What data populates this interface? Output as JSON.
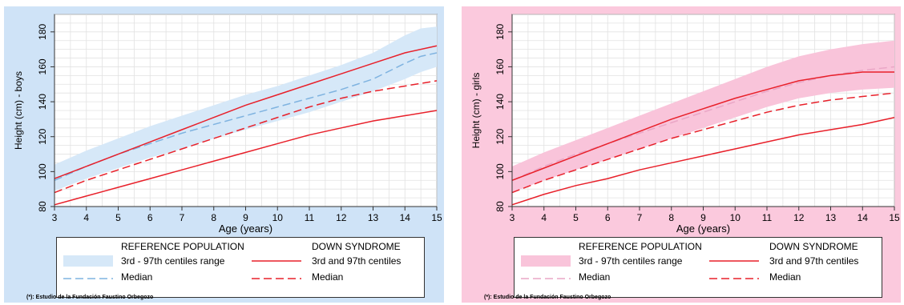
{
  "chart_data": [
    {
      "type": "line",
      "xlabel": "Age (years)",
      "ylabel": "Height (cm) - boys",
      "xlim": [
        3,
        15
      ],
      "ylim": [
        80,
        190
      ],
      "xticks": [
        "3",
        "4",
        "5",
        "6",
        "7",
        "8",
        "9",
        "10",
        "11",
        "12",
        "13",
        "14",
        "15"
      ],
      "yticks": [
        "80",
        "100",
        "120",
        "140",
        "160",
        "180"
      ],
      "grid": true,
      "band_color": "#d6e8f8",
      "median_color": "#7fb3e0",
      "ds_color": "#e8202a",
      "bg_color": "#cfe3f7",
      "reference_band": {
        "x": [
          3,
          4,
          5,
          6,
          7,
          8,
          9,
          10,
          11,
          12,
          13,
          14,
          14.5,
          15
        ],
        "lower": [
          89,
          96,
          102,
          108,
          113,
          119,
          124,
          129,
          134,
          140,
          146,
          153,
          157,
          160
        ],
        "upper": [
          104,
          112,
          119,
          126,
          132,
          138,
          144,
          149,
          155,
          161,
          168,
          178,
          182,
          183
        ]
      },
      "reference_median": {
        "x": [
          3,
          4,
          5,
          6,
          7,
          8,
          9,
          10,
          11,
          12,
          13,
          14,
          14.5,
          15
        ],
        "y": [
          95,
          103,
          110,
          116,
          122,
          127,
          132,
          137,
          142,
          147,
          153,
          162,
          166,
          168
        ]
      },
      "ds_median": {
        "x": [
          3,
          4,
          5,
          6,
          7,
          8,
          9,
          10,
          11,
          12,
          13,
          14,
          15
        ],
        "y": [
          88,
          95,
          101,
          107,
          113,
          119,
          125,
          131,
          137,
          142,
          146,
          149,
          152
        ]
      },
      "ds_p3": {
        "x": [
          3,
          4,
          5,
          6,
          7,
          8,
          9,
          10,
          11,
          12,
          13,
          14,
          15
        ],
        "y": [
          81,
          86,
          91,
          96,
          101,
          106,
          111,
          116,
          121,
          125,
          129,
          132,
          135
        ]
      },
      "ds_p97": {
        "x": [
          3,
          4,
          5,
          6,
          7,
          8,
          9,
          10,
          11,
          12,
          13,
          14,
          15
        ],
        "y": [
          96,
          103,
          110,
          117,
          124,
          131,
          138,
          144,
          150,
          156,
          162,
          168,
          172
        ]
      },
      "legend": {
        "ref_header": "REFERENCE POPULATION",
        "ds_header": "DOWN SYNDROME",
        "ref_range": "3rd - 97th centiles range",
        "ref_median": "Median",
        "ds_centiles": "3rd and 97th centiles",
        "ds_median": "Median"
      },
      "footnote": "(*): Estudio de la Fundación Faustino Orbegozo"
    },
    {
      "type": "line",
      "xlabel": "Age (years)",
      "ylabel": "Height (cm) - girls",
      "xlim": [
        3,
        15
      ],
      "ylim": [
        80,
        190
      ],
      "xticks": [
        "3",
        "4",
        "5",
        "6",
        "7",
        "8",
        "9",
        "10",
        "11",
        "12",
        "13",
        "14",
        "15"
      ],
      "yticks": [
        "80",
        "100",
        "120",
        "140",
        "160",
        "180"
      ],
      "grid": true,
      "band_color": "#f9c4da",
      "median_color": "#eaa6c6",
      "ds_color": "#e8202a",
      "bg_color": "#fbc9dd",
      "reference_band": {
        "x": [
          3,
          4,
          5,
          6,
          7,
          8,
          9,
          10,
          11,
          12,
          13,
          14,
          15
        ],
        "lower": [
          88,
          95,
          101,
          107,
          113,
          119,
          125,
          131,
          137,
          142,
          145,
          147,
          148
        ],
        "upper": [
          103,
          111,
          118,
          125,
          132,
          139,
          146,
          153,
          160,
          166,
          170,
          173,
          175
        ]
      },
      "reference_median": {
        "x": [
          3,
          4,
          5,
          6,
          7,
          8,
          9,
          10,
          11,
          12,
          13,
          14,
          15
        ],
        "y": [
          95,
          103,
          110,
          116,
          122,
          128,
          134,
          140,
          146,
          151,
          155,
          158,
          160
        ]
      },
      "ds_median": {
        "x": [
          3,
          4,
          5,
          6,
          7,
          8,
          9,
          10,
          11,
          12,
          13,
          14,
          15
        ],
        "y": [
          88,
          95,
          101,
          107,
          113,
          119,
          124,
          129,
          134,
          138,
          141,
          143,
          145
        ]
      },
      "ds_p3": {
        "x": [
          3,
          4,
          5,
          6,
          7,
          8,
          9,
          10,
          11,
          12,
          13,
          14,
          15
        ],
        "y": [
          81,
          87,
          92,
          96,
          101,
          105,
          109,
          113,
          117,
          121,
          124,
          127,
          131
        ]
      },
      "ds_p97": {
        "x": [
          3,
          4,
          5,
          6,
          7,
          8,
          9,
          10,
          11,
          12,
          13,
          14,
          15
        ],
        "y": [
          95,
          102,
          109,
          116,
          123,
          130,
          136,
          142,
          147,
          152,
          155,
          157,
          157
        ]
      },
      "legend": {
        "ref_header": "REFERENCE POPULATION",
        "ds_header": "DOWN SYNDROME",
        "ref_range": "3rd - 97th centiles range",
        "ref_median": "Median",
        "ds_centiles": "3rd and 97th centiles",
        "ds_median": "Median"
      },
      "footnote": "(*): Estudio de la Fundación Faustino Orbegozo"
    }
  ]
}
